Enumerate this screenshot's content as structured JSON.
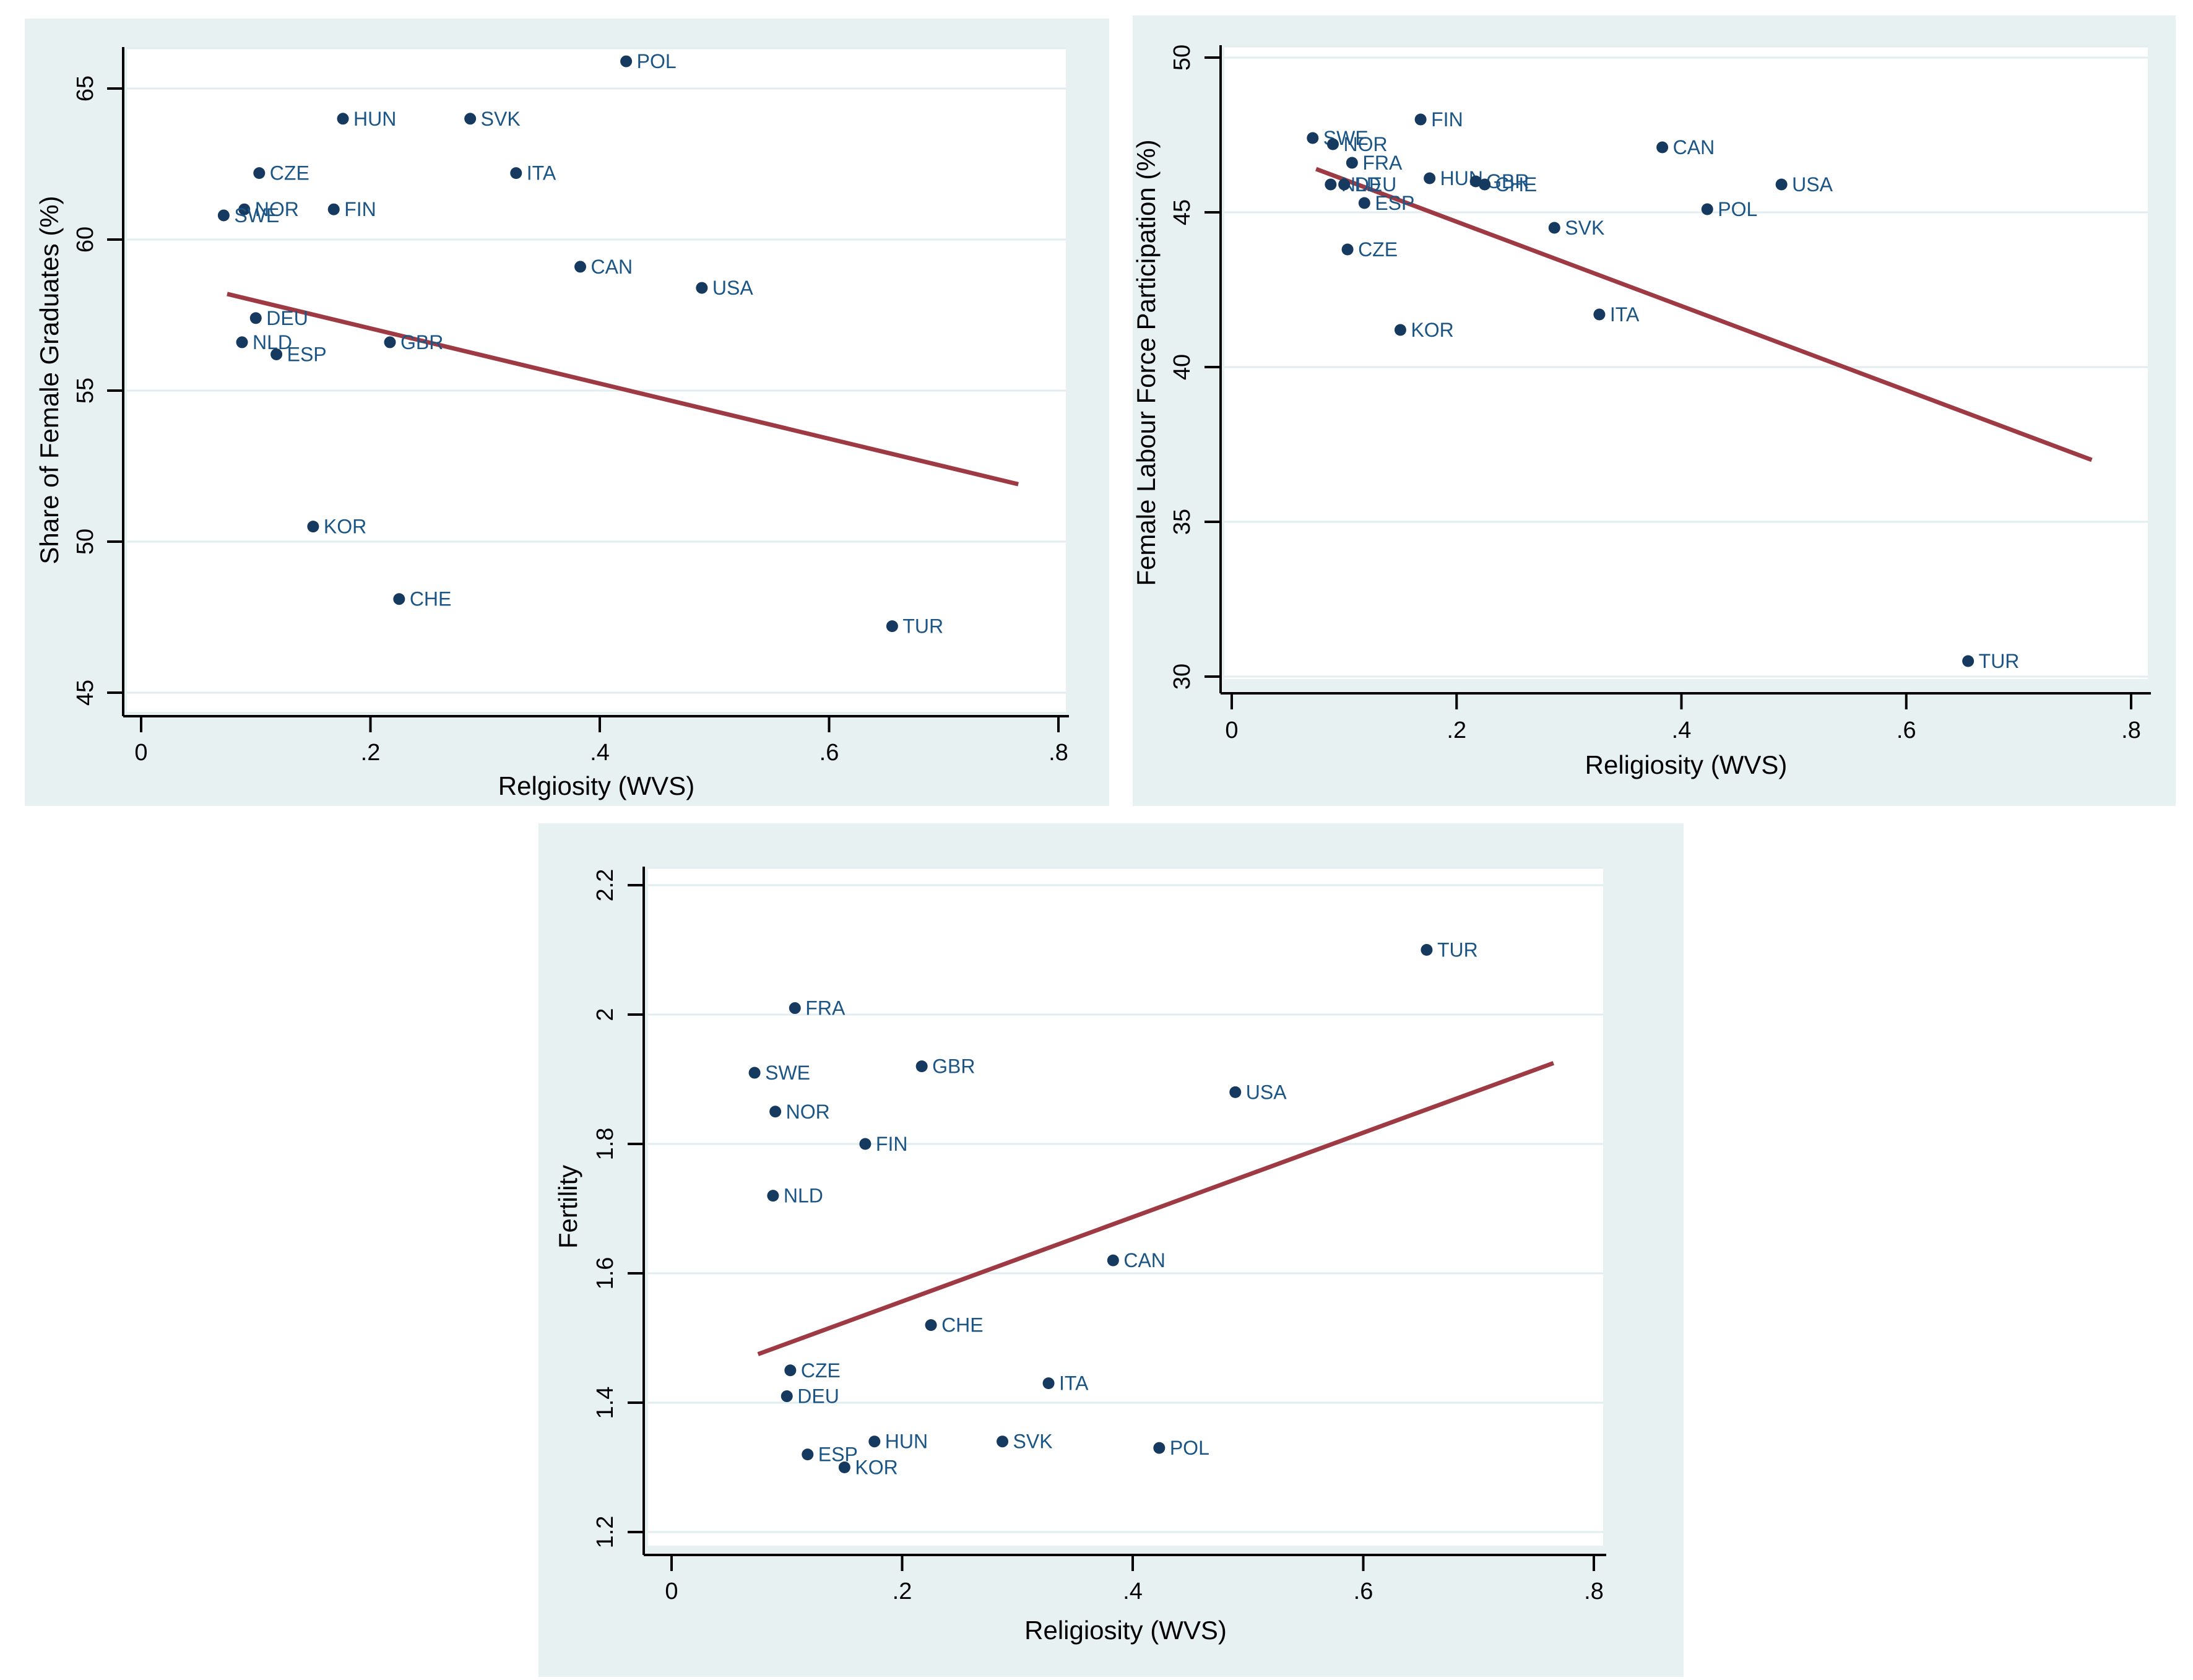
{
  "figure": {
    "description": "Three scatter plots of country-level religiosity against female outcomes",
    "background": "#ffffff"
  },
  "charts_common": {
    "x_tick_labels": [
      "0",
      ".2",
      ".4",
      ".6",
      ".8"
    ],
    "x_tick_values": [
      0,
      0.2,
      0.4,
      0.6,
      0.8
    ],
    "xlim": [
      0,
      0.8
    ],
    "grid": "horizontal-only",
    "legend": "none",
    "colors": {
      "panel_bg": "#e8f1f2",
      "plot_bg": "#ffffff",
      "gridline": "#e2edef",
      "axis": "#000000",
      "marker": "#15395f",
      "marker_label": "#1b5586",
      "trend_line": "#9e3a44"
    }
  },
  "chart_data": [
    {
      "type": "scatter",
      "title": "",
      "xlabel": "Relgiosity (WVS)",
      "ylabel": "Share of Female Graduates (%)",
      "xlim": [
        0,
        0.8
      ],
      "ylim": [
        45,
        65
      ],
      "y_tick_labels": [
        "45",
        "50",
        "55",
        "60",
        "65"
      ],
      "y_tick_values": [
        45,
        50,
        55,
        60,
        65
      ],
      "points": [
        {
          "label": "POL",
          "x": 0.423,
          "y": 65.9
        },
        {
          "label": "HUN",
          "x": 0.176,
          "y": 64.0
        },
        {
          "label": "SVK",
          "x": 0.287,
          "y": 64.0
        },
        {
          "label": "CZE",
          "x": 0.103,
          "y": 62.2
        },
        {
          "label": "ITA",
          "x": 0.327,
          "y": 62.2
        },
        {
          "label": "NOR",
          "x": 0.09,
          "y": 61.0
        },
        {
          "label": "FIN",
          "x": 0.168,
          "y": 61.0
        },
        {
          "label": "SWE",
          "x": 0.072,
          "y": 60.8
        },
        {
          "label": "CAN",
          "x": 0.383,
          "y": 59.1
        },
        {
          "label": "USA",
          "x": 0.489,
          "y": 58.4
        },
        {
          "label": "DEU",
          "x": 0.1,
          "y": 57.4
        },
        {
          "label": "NLD",
          "x": 0.088,
          "y": 56.6
        },
        {
          "label": "GBR",
          "x": 0.217,
          "y": 56.6
        },
        {
          "label": "ESP",
          "x": 0.118,
          "y": 56.2
        },
        {
          "label": "KOR",
          "x": 0.15,
          "y": 50.5
        },
        {
          "label": "CHE",
          "x": 0.225,
          "y": 48.1
        },
        {
          "label": "TUR",
          "x": 0.655,
          "y": 47.2
        }
      ],
      "trend": {
        "x1": 0.075,
        "y1": 58.2,
        "x2": 0.765,
        "y2": 51.9
      }
    },
    {
      "type": "scatter",
      "title": "",
      "xlabel": "Religiosity (WVS)",
      "ylabel": "Female Labour Force Participation (%)",
      "xlim": [
        0,
        0.8
      ],
      "ylim": [
        30,
        50
      ],
      "y_tick_labels": [
        "30",
        "35",
        "40",
        "45",
        "50"
      ],
      "y_tick_values": [
        30,
        35,
        40,
        45,
        50
      ],
      "points": [
        {
          "label": "FIN",
          "x": 0.168,
          "y": 48.0
        },
        {
          "label": "SWE",
          "x": 0.072,
          "y": 47.4
        },
        {
          "label": "NOR",
          "x": 0.09,
          "y": 47.2
        },
        {
          "label": "CAN",
          "x": 0.383,
          "y": 47.1
        },
        {
          "label": "FRA",
          "x": 0.107,
          "y": 46.6
        },
        {
          "label": "HUN",
          "x": 0.176,
          "y": 46.1
        },
        {
          "label": "GBR",
          "x": 0.217,
          "y": 46.0
        },
        {
          "label": "USA",
          "x": 0.489,
          "y": 45.9
        },
        {
          "label": "CHE",
          "x": 0.225,
          "y": 45.9
        },
        {
          "label": "NLD",
          "x": 0.088,
          "y": 45.9
        },
        {
          "label": "DEU",
          "x": 0.1,
          "y": 45.9
        },
        {
          "label": "ESP",
          "x": 0.118,
          "y": 45.3
        },
        {
          "label": "POL",
          "x": 0.423,
          "y": 45.1
        },
        {
          "label": "SVK",
          "x": 0.287,
          "y": 44.5
        },
        {
          "label": "CZE",
          "x": 0.103,
          "y": 43.8
        },
        {
          "label": "ITA",
          "x": 0.327,
          "y": 41.7
        },
        {
          "label": "KOR",
          "x": 0.15,
          "y": 41.2
        },
        {
          "label": "TUR",
          "x": 0.655,
          "y": 30.5
        }
      ],
      "trend": {
        "x1": 0.075,
        "y1": 46.4,
        "x2": 0.765,
        "y2": 37.0
      }
    },
    {
      "type": "scatter",
      "title": "",
      "xlabel": "Religiosity (WVS)",
      "ylabel": "Fertility",
      "xlim": [
        0,
        0.8
      ],
      "ylim": [
        1.2,
        2.2
      ],
      "y_tick_labels": [
        "1.2",
        "1.4",
        "1.6",
        "1.8",
        "2",
        "2.2"
      ],
      "y_tick_values": [
        1.2,
        1.4,
        1.6,
        1.8,
        2.0,
        2.2
      ],
      "points": [
        {
          "label": "TUR",
          "x": 0.655,
          "y": 2.1
        },
        {
          "label": "FRA",
          "x": 0.107,
          "y": 2.01
        },
        {
          "label": "GBR",
          "x": 0.217,
          "y": 1.92
        },
        {
          "label": "SWE",
          "x": 0.072,
          "y": 1.91
        },
        {
          "label": "USA",
          "x": 0.489,
          "y": 1.88
        },
        {
          "label": "NOR",
          "x": 0.09,
          "y": 1.85
        },
        {
          "label": "FIN",
          "x": 0.168,
          "y": 1.8
        },
        {
          "label": "NLD",
          "x": 0.088,
          "y": 1.72
        },
        {
          "label": "CAN",
          "x": 0.383,
          "y": 1.62
        },
        {
          "label": "CHE",
          "x": 0.225,
          "y": 1.52
        },
        {
          "label": "CZE",
          "x": 0.103,
          "y": 1.45
        },
        {
          "label": "ITA",
          "x": 0.327,
          "y": 1.43
        },
        {
          "label": "DEU",
          "x": 0.1,
          "y": 1.41
        },
        {
          "label": "HUN",
          "x": 0.176,
          "y": 1.34
        },
        {
          "label": "SVK",
          "x": 0.287,
          "y": 1.34
        },
        {
          "label": "POL",
          "x": 0.423,
          "y": 1.33
        },
        {
          "label": "ESP",
          "x": 0.118,
          "y": 1.32
        },
        {
          "label": "KOR",
          "x": 0.15,
          "y": 1.3
        }
      ],
      "trend": {
        "x1": 0.075,
        "y1": 1.475,
        "x2": 0.765,
        "y2": 1.925
      }
    }
  ]
}
